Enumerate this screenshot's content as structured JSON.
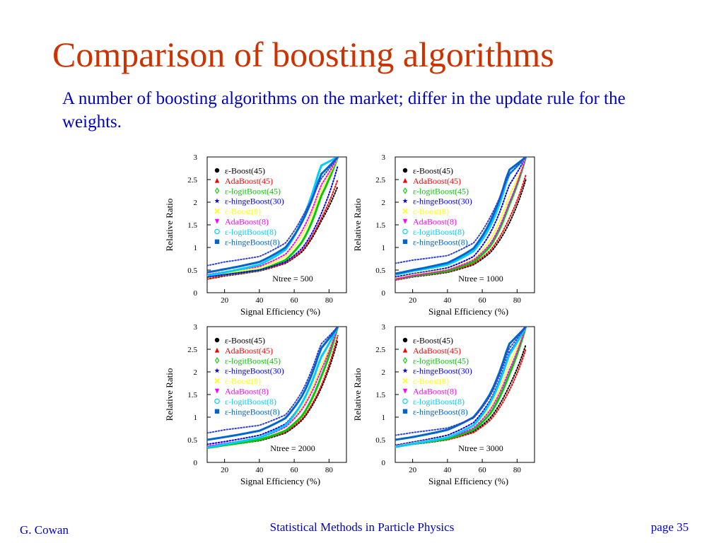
{
  "slide": {
    "title": "Comparison of boosting algorithms",
    "title_color": "#cc3300",
    "subtitle": "A number of boosting algorithms on the market; differ in the update rule for the weights.",
    "footer_left": "G. Cowan",
    "footer_center": "Statistical Methods in Particle Physics",
    "footer_right": "page 35"
  },
  "chart_data": [
    {
      "type": "scatter",
      "annotation": "Ntree = 500",
      "xlabel": "Signal Efficiency (%)",
      "ylabel": "Relative Ratio",
      "xlim": [
        10,
        90
      ],
      "ylim": [
        0,
        3
      ],
      "xticks": [
        20,
        40,
        60,
        80
      ],
      "yticks": [
        0,
        0.5,
        1,
        1.5,
        2,
        2.5,
        3
      ],
      "legend_position": "top-left",
      "series": [
        {
          "name": "ε-Boost(45)",
          "color": "#000000",
          "marker": "circle",
          "style": "dotted",
          "y": [
            0.3,
            0.37,
            0.48,
            0.65,
            0.92,
            1.55,
            2.35
          ]
        },
        {
          "name": "AdaBoost(45)",
          "color": "#ff0000",
          "marker": "triangle-up",
          "style": "dotted",
          "y": [
            0.3,
            0.38,
            0.48,
            0.66,
            0.95,
            1.6,
            2.5
          ]
        },
        {
          "name": "ε-logitBoost(45)",
          "color": "#00cc00",
          "marker": "diamond",
          "style": "solid",
          "y": [
            0.35,
            0.4,
            0.5,
            0.72,
            1.15,
            2.1,
            3.0
          ]
        },
        {
          "name": "ε-hingeBoost(30)",
          "color": "#0000ff",
          "marker": "star",
          "style": "dotted",
          "y": [
            0.35,
            0.4,
            0.5,
            0.68,
            1.0,
            1.7,
            2.8
          ]
        },
        {
          "name": "ε-Boost(8)",
          "color": "#ffff00",
          "marker": "x",
          "style": "dotted",
          "y": [
            0.38,
            0.43,
            0.55,
            0.8,
            1.3,
            2.25,
            3.0
          ]
        },
        {
          "name": "AdaBoost(8)",
          "color": "#ff00ff",
          "marker": "triangle-down",
          "style": "dotted",
          "y": [
            0.4,
            0.46,
            0.58,
            0.85,
            1.4,
            2.35,
            3.0
          ]
        },
        {
          "name": "ε-logitBoost(8)",
          "color": "#00ccff",
          "marker": "circle-open",
          "style": "solid",
          "y": [
            0.38,
            0.45,
            0.62,
            0.95,
            1.65,
            2.8,
            3.0
          ]
        },
        {
          "name": "ε-hingeBoost(8)",
          "color": "#0066cc",
          "marker": "square",
          "style": "solid",
          "y": [
            0.45,
            0.52,
            0.68,
            1.0,
            1.6,
            2.6,
            3.0
          ]
        },
        {
          "name": "",
          "color": "#3344cc",
          "marker": "none",
          "style": "dotted",
          "y": [
            0.6,
            0.68,
            0.8,
            1.1,
            1.7,
            2.5,
            3.0
          ]
        }
      ],
      "x": [
        10,
        20,
        40,
        55,
        65,
        75,
        85
      ]
    },
    {
      "type": "scatter",
      "annotation": "Ntree = 1000",
      "xlabel": "Signal Efficiency (%)",
      "ylabel": "Relative Ratio",
      "xlim": [
        10,
        90
      ],
      "ylim": [
        0,
        3
      ],
      "xticks": [
        20,
        40,
        60,
        80
      ],
      "yticks": [
        0,
        0.5,
        1,
        1.5,
        2,
        2.5,
        3
      ],
      "legend_position": "top-left",
      "series": [
        {
          "name": "ε-Boost(45)",
          "color": "#000000",
          "marker": "circle",
          "style": "dotted",
          "y": [
            0.28,
            0.35,
            0.45,
            0.62,
            0.9,
            1.5,
            2.5
          ]
        },
        {
          "name": "AdaBoost(45)",
          "color": "#ff0000",
          "marker": "triangle-up",
          "style": "dotted",
          "y": [
            0.28,
            0.36,
            0.46,
            0.64,
            0.95,
            1.6,
            2.6
          ]
        },
        {
          "name": "ε-logitBoost(45)",
          "color": "#00cc00",
          "marker": "diamond",
          "style": "solid",
          "y": [
            0.3,
            0.37,
            0.48,
            0.68,
            1.05,
            1.9,
            3.0
          ]
        },
        {
          "name": "ε-hingeBoost(30)",
          "color": "#0000ff",
          "marker": "star",
          "style": "dotted",
          "y": [
            0.35,
            0.42,
            0.55,
            0.8,
            1.35,
            2.35,
            3.0
          ]
        },
        {
          "name": "ε-Boost(8)",
          "color": "#ffff00",
          "marker": "x",
          "style": "dotted",
          "y": [
            0.32,
            0.4,
            0.52,
            0.75,
            1.2,
            2.1,
            3.0
          ]
        },
        {
          "name": "AdaBoost(8)",
          "color": "#ff00ff",
          "marker": "triangle-down",
          "style": "dotted",
          "y": [
            0.3,
            0.38,
            0.5,
            0.72,
            1.1,
            1.95,
            3.0
          ]
        },
        {
          "name": "ε-logitBoost(8)",
          "color": "#00ccff",
          "marker": "circle-open",
          "style": "solid",
          "y": [
            0.4,
            0.48,
            0.62,
            0.92,
            1.5,
            2.6,
            3.0
          ]
        },
        {
          "name": "ε-hingeBoost(8)",
          "color": "#0066cc",
          "marker": "square",
          "style": "solid",
          "y": [
            0.42,
            0.5,
            0.66,
            0.98,
            1.6,
            2.7,
            3.0
          ]
        },
        {
          "name": "",
          "color": "#3344cc",
          "marker": "none",
          "style": "dotted",
          "y": [
            0.65,
            0.72,
            0.82,
            1.1,
            1.7,
            2.6,
            3.0
          ]
        }
      ],
      "x": [
        10,
        20,
        40,
        55,
        65,
        75,
        85
      ]
    },
    {
      "type": "scatter",
      "annotation": "Ntree = 2000",
      "xlabel": "Signal Efficiency (%)",
      "ylabel": "Relative Ratio",
      "xlim": [
        10,
        90
      ],
      "ylim": [
        0,
        3
      ],
      "xticks": [
        20,
        40,
        60,
        80
      ],
      "yticks": [
        0,
        0.5,
        1,
        1.5,
        2,
        2.5,
        3
      ],
      "legend_position": "top-left",
      "series": [
        {
          "name": "ε-Boost(45)",
          "color": "#000000",
          "marker": "circle",
          "style": "dotted",
          "y": [
            0.32,
            0.38,
            0.48,
            0.65,
            0.95,
            1.6,
            2.7
          ]
        },
        {
          "name": "AdaBoost(45)",
          "color": "#ff0000",
          "marker": "triangle-up",
          "style": "dotted",
          "y": [
            0.33,
            0.39,
            0.49,
            0.67,
            0.98,
            1.65,
            2.8
          ]
        },
        {
          "name": "ε-logitBoost(45)",
          "color": "#00cc00",
          "marker": "diamond",
          "style": "solid",
          "y": [
            0.32,
            0.38,
            0.5,
            0.7,
            1.05,
            1.85,
            3.0
          ]
        },
        {
          "name": "ε-hingeBoost(30)",
          "color": "#0000ff",
          "marker": "star",
          "style": "dotted",
          "y": [
            0.4,
            0.46,
            0.6,
            0.85,
            1.35,
            2.3,
            3.0
          ]
        },
        {
          "name": "ε-Boost(8)",
          "color": "#ffff00",
          "marker": "x",
          "style": "dotted",
          "y": [
            0.36,
            0.42,
            0.55,
            0.8,
            1.25,
            2.1,
            3.0
          ]
        },
        {
          "name": "AdaBoost(8)",
          "color": "#ff00ff",
          "marker": "triangle-down",
          "style": "dotted",
          "y": [
            0.36,
            0.42,
            0.54,
            0.78,
            1.2,
            2.0,
            3.0
          ]
        },
        {
          "name": "ε-logitBoost(8)",
          "color": "#00ccff",
          "marker": "circle-open",
          "style": "solid",
          "y": [
            0.33,
            0.4,
            0.55,
            0.82,
            1.35,
            2.3,
            3.0
          ]
        },
        {
          "name": "ε-hingeBoost(8)",
          "color": "#0066cc",
          "marker": "square",
          "style": "solid",
          "y": [
            0.5,
            0.56,
            0.7,
            0.98,
            1.5,
            2.5,
            3.0
          ]
        },
        {
          "name": "",
          "color": "#3344cc",
          "marker": "none",
          "style": "dotted",
          "y": [
            0.65,
            0.72,
            0.82,
            1.05,
            1.6,
            2.6,
            3.0
          ]
        }
      ],
      "x": [
        10,
        20,
        40,
        55,
        65,
        75,
        85
      ]
    },
    {
      "type": "scatter",
      "annotation": "Ntree = 3000",
      "xlabel": "Signal Efficiency (%)",
      "ylabel": "Relative Ratio",
      "xlim": [
        10,
        90
      ],
      "ylim": [
        0,
        3
      ],
      "xticks": [
        20,
        40,
        60,
        80
      ],
      "yticks": [
        0,
        0.5,
        1,
        1.5,
        2,
        2.5,
        3
      ],
      "legend_position": "top-left",
      "series": [
        {
          "name": "ε-Boost(45)",
          "color": "#000000",
          "marker": "circle",
          "style": "dotted",
          "y": [
            0.35,
            0.4,
            0.5,
            0.68,
            1.0,
            1.65,
            2.6
          ]
        },
        {
          "name": "AdaBoost(45)",
          "color": "#ff0000",
          "marker": "triangle-up",
          "style": "dotted",
          "y": [
            0.38,
            0.42,
            0.5,
            0.66,
            0.95,
            1.55,
            2.5
          ]
        },
        {
          "name": "ε-logitBoost(45)",
          "color": "#00cc00",
          "marker": "diamond",
          "style": "solid",
          "y": [
            0.35,
            0.41,
            0.52,
            0.72,
            1.1,
            1.9,
            3.0
          ]
        },
        {
          "name": "ε-hingeBoost(30)",
          "color": "#0000ff",
          "marker": "star",
          "style": "dotted",
          "y": [
            0.38,
            0.45,
            0.6,
            0.88,
            1.4,
            2.4,
            3.0
          ]
        },
        {
          "name": "ε-Boost(8)",
          "color": "#ffff00",
          "marker": "x",
          "style": "dotted",
          "y": [
            0.36,
            0.43,
            0.56,
            0.8,
            1.25,
            2.15,
            3.0
          ]
        },
        {
          "name": "AdaBoost(8)",
          "color": "#ff00ff",
          "marker": "triangle-down",
          "style": "dotted",
          "y": [
            0.35,
            0.42,
            0.54,
            0.76,
            1.18,
            2.0,
            3.0
          ]
        },
        {
          "name": "ε-logitBoost(8)",
          "color": "#00ccff",
          "marker": "circle-open",
          "style": "solid",
          "y": [
            0.34,
            0.41,
            0.55,
            0.82,
            1.35,
            2.35,
            3.0
          ]
        },
        {
          "name": "ε-hingeBoost(8)",
          "color": "#0066cc",
          "marker": "square",
          "style": "solid",
          "y": [
            0.5,
            0.56,
            0.72,
            1.0,
            1.55,
            2.6,
            3.0
          ]
        },
        {
          "name": "",
          "color": "#3344cc",
          "marker": "none",
          "style": "dotted",
          "y": [
            0.6,
            0.66,
            0.76,
            0.98,
            1.5,
            2.5,
            3.0
          ]
        }
      ],
      "x": [
        10,
        20,
        40,
        55,
        65,
        75,
        85
      ]
    }
  ]
}
